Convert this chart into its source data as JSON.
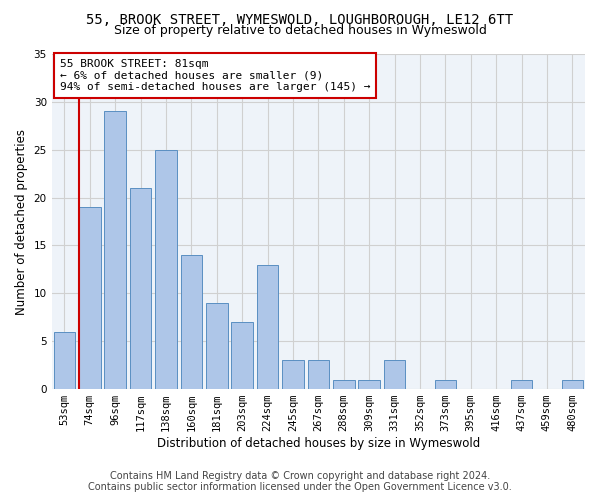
{
  "title_line1": "55, BROOK STREET, WYMESWOLD, LOUGHBOROUGH, LE12 6TT",
  "title_line2": "Size of property relative to detached houses in Wymeswold",
  "xlabel": "Distribution of detached houses by size in Wymeswold",
  "ylabel": "Number of detached properties",
  "categories": [
    "53sqm",
    "74sqm",
    "96sqm",
    "117sqm",
    "138sqm",
    "160sqm",
    "181sqm",
    "203sqm",
    "224sqm",
    "245sqm",
    "267sqm",
    "288sqm",
    "309sqm",
    "331sqm",
    "352sqm",
    "373sqm",
    "395sqm",
    "416sqm",
    "437sqm",
    "459sqm",
    "480sqm"
  ],
  "values": [
    6,
    19,
    29,
    21,
    25,
    14,
    9,
    7,
    13,
    3,
    3,
    1,
    1,
    3,
    0,
    1,
    0,
    0,
    1,
    0,
    1
  ],
  "bar_color": "#aec6e8",
  "bar_edge_color": "#5a8fc2",
  "vline_x_index": 1,
  "vline_color": "#cc0000",
  "annotation_text": "55 BROOK STREET: 81sqm\n← 6% of detached houses are smaller (9)\n94% of semi-detached houses are larger (145) →",
  "annotation_box_color": "#ffffff",
  "annotation_box_edge": "#cc0000",
  "ylim": [
    0,
    35
  ],
  "yticks": [
    0,
    5,
    10,
    15,
    20,
    25,
    30,
    35
  ],
  "grid_color": "#d0d0d0",
  "background_color": "#eef3f9",
  "footer_line1": "Contains HM Land Registry data © Crown copyright and database right 2024.",
  "footer_line2": "Contains public sector information licensed under the Open Government Licence v3.0.",
  "title_fontsize": 10,
  "subtitle_fontsize": 9,
  "axis_label_fontsize": 8.5,
  "tick_fontsize": 7.5,
  "annotation_fontsize": 8,
  "footer_fontsize": 7
}
